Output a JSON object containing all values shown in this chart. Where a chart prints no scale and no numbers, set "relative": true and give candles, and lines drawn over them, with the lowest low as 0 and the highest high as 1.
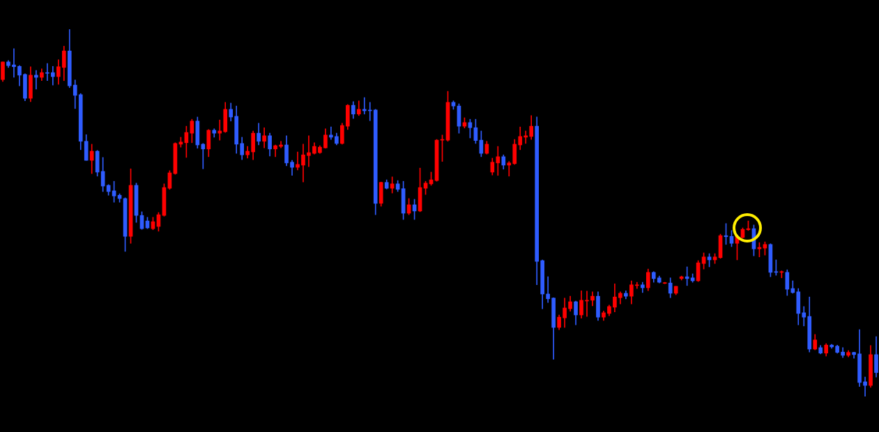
{
  "chart_data": {
    "type": "candlestick",
    "relative": true,
    "categories": [
      null,
      null,
      null,
      null,
      null,
      null,
      null,
      null,
      null,
      null,
      null,
      null,
      null,
      null,
      null,
      null,
      null,
      null,
      null,
      null,
      null,
      null,
      null,
      null,
      null,
      null,
      null,
      null,
      null,
      null,
      null,
      null,
      null,
      null,
      null,
      null,
      null,
      null,
      null,
      null,
      null,
      null,
      null,
      null,
      null,
      null,
      null,
      null,
      null,
      null,
      null,
      null,
      null,
      null,
      null,
      null,
      null,
      null,
      null,
      null,
      null,
      null,
      null,
      null,
      null,
      null,
      null,
      null,
      null,
      null,
      null,
      null,
      null,
      null,
      null,
      null,
      null,
      null,
      null,
      null,
      null,
      null,
      null,
      null,
      null,
      null,
      null,
      null,
      null,
      null,
      null,
      null,
      null,
      null,
      null,
      null,
      null,
      null,
      null,
      null,
      null,
      null,
      null,
      null,
      null,
      null,
      null,
      null,
      null,
      null,
      null,
      null,
      null,
      null,
      null,
      null,
      null,
      null,
      null,
      null,
      null,
      null,
      null,
      null,
      null,
      null,
      null,
      null,
      null,
      null,
      null,
      null,
      null,
      null,
      null,
      null,
      null,
      null,
      null,
      null,
      null,
      null,
      null,
      null,
      null,
      null,
      null,
      null,
      null,
      null,
      null,
      null,
      null,
      null,
      null,
      null,
      null,
      null
    ],
    "ohlc": [
      [
        0.863,
        0.911,
        0.858,
        0.911
      ],
      [
        0.911,
        0.915,
        0.896,
        0.901
      ],
      [
        0.903,
        0.947,
        0.869,
        0.898
      ],
      [
        0.899,
        0.901,
        0.846,
        0.875
      ],
      [
        0.877,
        0.879,
        0.805,
        0.812
      ],
      [
        0.812,
        0.898,
        0.803,
        0.875
      ],
      [
        0.875,
        0.888,
        0.837,
        0.869
      ],
      [
        0.869,
        0.892,
        0.86,
        0.882
      ],
      [
        0.882,
        0.907,
        0.86,
        0.88
      ],
      [
        0.882,
        0.899,
        0.848,
        0.871
      ],
      [
        0.871,
        0.917,
        0.85,
        0.898
      ],
      [
        0.896,
        0.954,
        0.86,
        0.941
      ],
      [
        0.941,
        1.0,
        0.841,
        0.846
      ],
      [
        0.848,
        0.862,
        0.784,
        0.82
      ],
      [
        0.822,
        0.825,
        0.672,
        0.695
      ],
      [
        0.695,
        0.713,
        0.643,
        0.643
      ],
      [
        0.643,
        0.687,
        0.607,
        0.668
      ],
      [
        0.668,
        0.67,
        0.6,
        0.611
      ],
      [
        0.613,
        0.651,
        0.558,
        0.573
      ],
      [
        0.575,
        0.577,
        0.548,
        0.558
      ],
      [
        0.56,
        0.586,
        0.529,
        0.546
      ],
      [
        0.548,
        0.552,
        0.529,
        0.539
      ],
      [
        0.539,
        0.541,
        0.395,
        0.436
      ],
      [
        0.436,
        0.62,
        0.417,
        0.575
      ],
      [
        0.575,
        0.581,
        0.474,
        0.493
      ],
      [
        0.493,
        0.503,
        0.455,
        0.457
      ],
      [
        0.478,
        0.488,
        0.457,
        0.459
      ],
      [
        0.457,
        0.488,
        0.454,
        0.476
      ],
      [
        0.463,
        0.501,
        0.45,
        0.495
      ],
      [
        0.493,
        0.579,
        0.491,
        0.569
      ],
      [
        0.567,
        0.615,
        0.564,
        0.609
      ],
      [
        0.607,
        0.691,
        0.605,
        0.689
      ],
      [
        0.687,
        0.706,
        0.679,
        0.693
      ],
      [
        0.691,
        0.736,
        0.651,
        0.719
      ],
      [
        0.717,
        0.755,
        0.691,
        0.75
      ],
      [
        0.75,
        0.761,
        0.676,
        0.685
      ],
      [
        0.687,
        0.689,
        0.62,
        0.674
      ],
      [
        0.674,
        0.727,
        0.653,
        0.725
      ],
      [
        0.725,
        0.729,
        0.706,
        0.717
      ],
      [
        0.717,
        0.753,
        0.698,
        0.723
      ],
      [
        0.721,
        0.801,
        0.719,
        0.782
      ],
      [
        0.782,
        0.799,
        0.75,
        0.761
      ],
      [
        0.763,
        0.791,
        0.662,
        0.687
      ],
      [
        0.689,
        0.706,
        0.645,
        0.658
      ],
      [
        0.658,
        0.681,
        0.649,
        0.668
      ],
      [
        0.666,
        0.723,
        0.645,
        0.717
      ],
      [
        0.717,
        0.744,
        0.685,
        0.695
      ],
      [
        0.695,
        0.732,
        0.677,
        0.71
      ],
      [
        0.71,
        0.717,
        0.655,
        0.674
      ],
      [
        0.674,
        0.685,
        0.653,
        0.683
      ],
      [
        0.681,
        0.695,
        0.677,
        0.685
      ],
      [
        0.685,
        0.71,
        0.628,
        0.636
      ],
      [
        0.638,
        0.643,
        0.602,
        0.624
      ],
      [
        0.624,
        0.666,
        0.617,
        0.632
      ],
      [
        0.63,
        0.687,
        0.584,
        0.658
      ],
      [
        0.656,
        0.71,
        0.626,
        0.664
      ],
      [
        0.662,
        0.691,
        0.66,
        0.681
      ],
      [
        0.664,
        0.683,
        0.662,
        0.679
      ],
      [
        0.677,
        0.729,
        0.676,
        0.712
      ],
      [
        0.712,
        0.734,
        0.7,
        0.706
      ],
      [
        0.708,
        0.717,
        0.685,
        0.689
      ],
      [
        0.689,
        0.744,
        0.687,
        0.738
      ],
      [
        0.736,
        0.795,
        0.727,
        0.793
      ],
      [
        0.793,
        0.803,
        0.757,
        0.769
      ],
      [
        0.769,
        0.805,
        0.765,
        0.782
      ],
      [
        0.782,
        0.814,
        0.769,
        0.778
      ],
      [
        0.78,
        0.801,
        0.751,
        0.778
      ],
      [
        0.78,
        0.782,
        0.495,
        0.526
      ],
      [
        0.526,
        0.584,
        0.518,
        0.583
      ],
      [
        0.583,
        0.59,
        0.565,
        0.567
      ],
      [
        0.567,
        0.598,
        0.554,
        0.579
      ],
      [
        0.579,
        0.588,
        0.558,
        0.564
      ],
      [
        0.566,
        0.586,
        0.482,
        0.499
      ],
      [
        0.499,
        0.539,
        0.495,
        0.522
      ],
      [
        0.522,
        0.537,
        0.482,
        0.505
      ],
      [
        0.505,
        0.622,
        0.503,
        0.569
      ],
      [
        0.567,
        0.586,
        0.55,
        0.581
      ],
      [
        0.579,
        0.611,
        0.575,
        0.59
      ],
      [
        0.588,
        0.7,
        0.586,
        0.698
      ],
      [
        0.698,
        0.712,
        0.64,
        0.7
      ],
      [
        0.698,
        0.831,
        0.695,
        0.801
      ],
      [
        0.801,
        0.805,
        0.782,
        0.791
      ],
      [
        0.791,
        0.797,
        0.717,
        0.736
      ],
      [
        0.736,
        0.759,
        0.731,
        0.746
      ],
      [
        0.746,
        0.755,
        0.704,
        0.732
      ],
      [
        0.732,
        0.755,
        0.689,
        0.697
      ],
      [
        0.698,
        0.723,
        0.653,
        0.662
      ],
      [
        0.662,
        0.695,
        0.66,
        0.687
      ],
      [
        0.611,
        0.649,
        0.603,
        0.638
      ],
      [
        0.636,
        0.681,
        0.602,
        0.653
      ],
      [
        0.653,
        0.658,
        0.619,
        0.63
      ],
      [
        0.63,
        0.64,
        0.6,
        0.636
      ],
      [
        0.634,
        0.7,
        0.632,
        0.687
      ],
      [
        0.685,
        0.734,
        0.672,
        0.708
      ],
      [
        0.706,
        0.723,
        0.689,
        0.71
      ],
      [
        0.708,
        0.765,
        0.7,
        0.736
      ],
      [
        0.736,
        0.761,
        0.304,
        0.368
      ],
      [
        0.37,
        0.372,
        0.239,
        0.279
      ],
      [
        0.279,
        0.326,
        0.256,
        0.266
      ],
      [
        0.268,
        0.269,
        0.101,
        0.188
      ],
      [
        0.188,
        0.222,
        0.182,
        0.216
      ],
      [
        0.214,
        0.268,
        0.188,
        0.241
      ],
      [
        0.239,
        0.273,
        0.232,
        0.258
      ],
      [
        0.258,
        0.26,
        0.195,
        0.222
      ],
      [
        0.222,
        0.288,
        0.213,
        0.262
      ],
      [
        0.26,
        0.287,
        0.218,
        0.262
      ],
      [
        0.262,
        0.285,
        0.247,
        0.273
      ],
      [
        0.273,
        0.285,
        0.207,
        0.216
      ],
      [
        0.216,
        0.233,
        0.207,
        0.228
      ],
      [
        0.226,
        0.249,
        0.22,
        0.245
      ],
      [
        0.243,
        0.307,
        0.23,
        0.271
      ],
      [
        0.269,
        0.285,
        0.252,
        0.281
      ],
      [
        0.281,
        0.288,
        0.266,
        0.273
      ],
      [
        0.273,
        0.315,
        0.252,
        0.304
      ],
      [
        0.302,
        0.311,
        0.294,
        0.304
      ],
      [
        0.304,
        0.311,
        0.283,
        0.296
      ],
      [
        0.296,
        0.347,
        0.288,
        0.338
      ],
      [
        0.338,
        0.34,
        0.311,
        0.321
      ],
      [
        0.323,
        0.328,
        0.309,
        0.311
      ],
      [
        0.308,
        0.311,
        0.307,
        0.309
      ],
      [
        0.309,
        0.323,
        0.269,
        0.281
      ],
      [
        0.281,
        0.3,
        0.277,
        0.3
      ],
      [
        0.321,
        0.328,
        0.317,
        0.326
      ],
      [
        0.326,
        0.353,
        0.302,
        0.321
      ],
      [
        0.323,
        0.334,
        0.311,
        0.315
      ],
      [
        0.315,
        0.37,
        0.313,
        0.364
      ],
      [
        0.362,
        0.391,
        0.347,
        0.38
      ],
      [
        0.38,
        0.389,
        0.353,
        0.372
      ],
      [
        0.372,
        0.389,
        0.362,
        0.38
      ],
      [
        0.378,
        0.442,
        0.376,
        0.438
      ],
      [
        0.438,
        0.471,
        0.414,
        0.435
      ],
      [
        0.436,
        0.452,
        0.408,
        0.417
      ],
      [
        0.417,
        0.438,
        0.372,
        0.436
      ],
      [
        0.433,
        0.459,
        0.431,
        0.455
      ],
      [
        0.454,
        0.478,
        0.452,
        0.457
      ],
      [
        0.457,
        0.467,
        0.383,
        0.402
      ],
      [
        0.402,
        0.419,
        0.38,
        0.406
      ],
      [
        0.404,
        0.421,
        0.385,
        0.414
      ],
      [
        0.414,
        0.416,
        0.326,
        0.338
      ],
      [
        0.34,
        0.372,
        0.33,
        0.338
      ],
      [
        0.338,
        0.342,
        0.323,
        0.34
      ],
      [
        0.338,
        0.345,
        0.275,
        0.292
      ],
      [
        0.294,
        0.315,
        0.281,
        0.283
      ],
      [
        0.285,
        0.294,
        0.195,
        0.226
      ],
      [
        0.228,
        0.245,
        0.192,
        0.216
      ],
      [
        0.218,
        0.271,
        0.121,
        0.129
      ],
      [
        0.129,
        0.169,
        0.127,
        0.154
      ],
      [
        0.133,
        0.139,
        0.116,
        0.118
      ],
      [
        0.118,
        0.144,
        0.11,
        0.14
      ],
      [
        0.14,
        0.142,
        0.131,
        0.135
      ],
      [
        0.137,
        0.14,
        0.118,
        0.12
      ],
      [
        0.121,
        0.133,
        0.106,
        0.112
      ],
      [
        0.112,
        0.125,
        0.108,
        0.12
      ],
      [
        0.12,
        0.121,
        0.104,
        0.114
      ],
      [
        0.116,
        0.182,
        0.027,
        0.038
      ],
      [
        0.04,
        0.053,
        0.0,
        0.03
      ],
      [
        0.03,
        0.139,
        0.025,
        0.114
      ],
      [
        0.114,
        0.163,
        0.053,
        0.065
      ]
    ],
    "colors": [
      "#ff0000",
      "#2f5cff",
      "#2f5cff",
      "#2f5cff",
      "#2f5cff",
      "#ff0000",
      "#2f5cff",
      "#ff0000",
      "#2f5cff",
      "#2f5cff",
      "#ff0000",
      "#ff0000",
      "#2f5cff",
      "#2f5cff",
      "#2f5cff",
      "#2f5cff",
      "#ff0000",
      "#2f5cff",
      "#2f5cff",
      "#2f5cff",
      "#2f5cff",
      "#2f5cff",
      "#2f5cff",
      "#ff0000",
      "#2f5cff",
      "#2f5cff",
      "#2f5cff",
      "#ff0000",
      "#ff0000",
      "#ff0000",
      "#ff0000",
      "#ff0000",
      "#ff0000",
      "#ff0000",
      "#ff0000",
      "#2f5cff",
      "#2f5cff",
      "#ff0000",
      "#2f5cff",
      "#ff0000",
      "#ff0000",
      "#2f5cff",
      "#2f5cff",
      "#2f5cff",
      "#ff0000",
      "#ff0000",
      "#2f5cff",
      "#ff0000",
      "#2f5cff",
      "#ff0000",
      "#ff0000",
      "#2f5cff",
      "#2f5cff",
      "#ff0000",
      "#ff0000",
      "#ff0000",
      "#ff0000",
      "#ff0000",
      "#ff0000",
      "#2f5cff",
      "#2f5cff",
      "#ff0000",
      "#ff0000",
      "#2f5cff",
      "#ff0000",
      "#2f5cff",
      "#2f5cff",
      "#2f5cff",
      "#ff0000",
      "#2f5cff",
      "#ff0000",
      "#2f5cff",
      "#2f5cff",
      "#ff0000",
      "#2f5cff",
      "#ff0000",
      "#ff0000",
      "#ff0000",
      "#ff0000",
      "#ff0000",
      "#ff0000",
      "#2f5cff",
      "#2f5cff",
      "#ff0000",
      "#2f5cff",
      "#2f5cff",
      "#2f5cff",
      "#ff0000",
      "#ff0000",
      "#ff0000",
      "#2f5cff",
      "#ff0000",
      "#ff0000",
      "#ff0000",
      "#ff0000",
      "#ff0000",
      "#2f5cff",
      "#2f5cff",
      "#2f5cff",
      "#2f5cff",
      "#ff0000",
      "#ff0000",
      "#ff0000",
      "#2f5cff",
      "#ff0000",
      "#ff0000",
      "#ff0000",
      "#2f5cff",
      "#ff0000",
      "#ff0000",
      "#ff0000",
      "#ff0000",
      "#2f5cff",
      "#ff0000",
      "#ff0000",
      "#2f5cff",
      "#ff0000",
      "#2f5cff",
      "#2f5cff",
      "#ff0000",
      "#2f5cff",
      "#ff0000",
      "#ff0000",
      "#2f5cff",
      "#2f5cff",
      "#ff0000",
      "#ff0000",
      "#2f5cff",
      "#ff0000",
      "#ff0000",
      "#2f5cff",
      "#2f5cff",
      "#ff0000",
      "#ff0000",
      "#ff0000",
      "#2f5cff",
      "#ff0000",
      "#ff0000",
      "#2f5cff",
      "#2f5cff",
      "#ff0000",
      "#2f5cff",
      "#2f5cff",
      "#2f5cff",
      "#2f5cff",
      "#2f5cff",
      "#ff0000",
      "#2f5cff",
      "#ff0000",
      "#2f5cff",
      "#2f5cff",
      "#2f5cff",
      "#ff0000",
      "#2f5cff",
      "#2f5cff",
      "#2f5cff",
      "#ff0000",
      "#2f5cff"
    ]
  }
}
